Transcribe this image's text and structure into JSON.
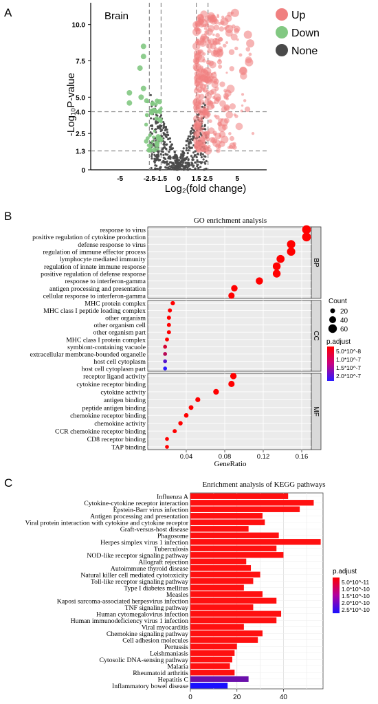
{
  "colors": {
    "up": "#f08080",
    "down": "#82c882",
    "none": "#4a4a4a",
    "dot_high": "#ff0000",
    "dot_low": "#2b1aff",
    "bar_high": "#ff1010",
    "bar_low": "#1a10ff",
    "panel_bg": "#ebebeb",
    "strip_bg": "#d9d9d9"
  },
  "panels": {
    "a": "A",
    "b": "B",
    "c": "C"
  },
  "chart_data": [
    {
      "type": "scatter",
      "title": "Brain",
      "xlabel": "Log₂(fold change)",
      "ylabel": "-Log₁₀P-value",
      "xlim": [
        -7.5,
        7.5
      ],
      "ylim": [
        0,
        11.5
      ],
      "xticks": [
        "-5",
        "-2.5",
        "-1.5",
        "0",
        "1.5",
        "2.5",
        "5"
      ],
      "xtick_values": [
        -5,
        -2.5,
        -1.5,
        0,
        1.5,
        2.5,
        5
      ],
      "yticks": [
        "0",
        "1.3",
        "2.5",
        "4.0",
        "5.0",
        "7.5",
        "10.0"
      ],
      "ytick_values": [
        0,
        1.3,
        2.5,
        4.0,
        5.0,
        7.5,
        10.0
      ],
      "vlines": [
        -2.5,
        -1.5,
        1.5,
        2.5
      ],
      "hlines": [
        1.3,
        4.0
      ],
      "legend": [
        "Up",
        "Down",
        "None"
      ],
      "legend_position": "right"
    },
    {
      "type": "scatter",
      "title": "GO enrichment analysis",
      "xlabel": "GeneRatio",
      "xlim": [
        0.0,
        0.17
      ],
      "xticks": [
        "0.04",
        "0.08",
        "0.12",
        "0.16"
      ],
      "xtick_values": [
        0.04,
        0.08,
        0.12,
        0.16
      ],
      "facets": [
        {
          "name": "BP",
          "terms": [
            {
              "term": "response to virus",
              "ratio": 0.165,
              "count": 60,
              "padj": 5e-12
            },
            {
              "term": "positive regulation of cytokine production",
              "ratio": 0.165,
              "count": 60,
              "padj": 5e-12
            },
            {
              "term": "defense response to virus",
              "ratio": 0.149,
              "count": 55,
              "padj": 5e-12
            },
            {
              "term": "regulation of immune effector process",
              "ratio": 0.149,
              "count": 55,
              "padj": 5e-12
            },
            {
              "term": "lymphocyte mediated immunity",
              "ratio": 0.138,
              "count": 52,
              "padj": 5e-12
            },
            {
              "term": "regulation of innate immune response",
              "ratio": 0.134,
              "count": 50,
              "padj": 5e-12
            },
            {
              "term": "positive regulation of defense response",
              "ratio": 0.134,
              "count": 50,
              "padj": 5e-12
            },
            {
              "term": "response to interferon-gamma",
              "ratio": 0.116,
              "count": 44,
              "padj": 5e-12
            },
            {
              "term": "antigen processing and presentation",
              "ratio": 0.09,
              "count": 36,
              "padj": 5e-12
            },
            {
              "term": "cellular response to interferon-gamma",
              "ratio": 0.087,
              "count": 34,
              "padj": 5e-12
            }
          ]
        },
        {
          "name": "CC",
          "terms": [
            {
              "term": "MHC protein complex",
              "ratio": 0.026,
              "count": 14,
              "padj": 1e-08
            },
            {
              "term": "MHC class I peptide loading complex",
              "ratio": 0.023,
              "count": 12,
              "padj": 1e-08
            },
            {
              "term": "other organism",
              "ratio": 0.022,
              "count": 11,
              "padj": 2e-08
            },
            {
              "term": "other organism cell",
              "ratio": 0.022,
              "count": 11,
              "padj": 2e-08
            },
            {
              "term": "other organism part",
              "ratio": 0.022,
              "count": 11,
              "padj": 2e-08
            },
            {
              "term": "MHC class I protein complex",
              "ratio": 0.02,
              "count": 10,
              "padj": 5e-08
            },
            {
              "term": "symbiont-containing vacuole",
              "ratio": 0.018,
              "count": 9,
              "padj": 8e-08
            },
            {
              "term": "extracellular membrane-bounded organelle",
              "ratio": 0.018,
              "count": 9,
              "padj": 1e-07
            },
            {
              "term": "host cell cytoplasm",
              "ratio": 0.018,
              "count": 9,
              "padj": 1.7e-07
            },
            {
              "term": "host cell cytoplasm part",
              "ratio": 0.018,
              "count": 9,
              "padj": 2e-07
            }
          ]
        },
        {
          "name": "MF",
          "terms": [
            {
              "term": "receptor ligand activity",
              "ratio": 0.089,
              "count": 35,
              "padj": 5e-12
            },
            {
              "term": "cytokine receptor binding",
              "ratio": 0.087,
              "count": 34,
              "padj": 5e-12
            },
            {
              "term": "cytokine activity",
              "ratio": 0.071,
              "count": 28,
              "padj": 5e-12
            },
            {
              "term": "antigen binding",
              "ratio": 0.052,
              "count": 20,
              "padj": 5e-12
            },
            {
              "term": "peptide antigen binding",
              "ratio": 0.045,
              "count": 18,
              "padj": 5e-12
            },
            {
              "term": "chemokine receptor binding",
              "ratio": 0.04,
              "count": 16,
              "padj": 5e-12
            },
            {
              "term": "chemokine activity",
              "ratio": 0.034,
              "count": 14,
              "padj": 5e-12
            },
            {
              "term": "CCR chemokine receptor binding",
              "ratio": 0.028,
              "count": 12,
              "padj": 5e-12
            },
            {
              "term": "CD8 receptor binding",
              "ratio": 0.02,
              "count": 9,
              "padj": 5e-12
            },
            {
              "term": "TAP binding",
              "ratio": 0.02,
              "count": 9,
              "padj": 5e-12
            }
          ]
        }
      ],
      "size_legend": {
        "title": "Count",
        "values": [
          20,
          40,
          60
        ]
      },
      "color_legend": {
        "title": "p.adjust",
        "labels": [
          "5.0*10^-8",
          "1.0*10^-7",
          "1.5*10^-7",
          "2.0*10^-7"
        ]
      },
      "legend_position": "right"
    },
    {
      "type": "bar",
      "orientation": "horizontal",
      "title": "Enrichment analysis of KEGG pathways",
      "xlim": [
        0,
        57
      ],
      "xticks": [
        "0",
        "20",
        "40"
      ],
      "xtick_values": [
        0,
        20,
        40
      ],
      "categories": [
        "Influenza A",
        "Cytokine-cytokine receptor interaction",
        "Epstein-Barr virus infection",
        "Antigen processing and presentation",
        "Viral protein interaction with cytokine and cytokine receptor",
        "Graft-versus-host disease",
        "Phagosome",
        "Herpes simplex virus 1 infection",
        "Tuberculosis",
        "NOD-like receptor signaling pathway",
        "Allograft rejection",
        "Autoimmune thyroid disease",
        "Natural killer cell mediated cytotoxicity",
        "Toll-like receptor signaling pathway",
        "Type I diabetes mellitus",
        "Measles",
        "Kaposi sarcoma-associated herpesvirus infection",
        "TNF signaling pathway",
        "Human cytomegalovirus infection",
        "Human immunodeficiency virus 1 infection",
        "Viral myocarditis",
        "Chemokine signaling pathway",
        "Cell adhesion molecules",
        "Pertussis",
        "Leishmaniasis",
        "Cytosolic DNA-sensing pathway",
        "Malaria",
        "Rheumatoid arthritis",
        "Hepatitis C",
        "Inflammatory bowel disease"
      ],
      "values": [
        42,
        53,
        47,
        31,
        32,
        25,
        38,
        56,
        37,
        40,
        24,
        26,
        30,
        27,
        23,
        31,
        37,
        27,
        39,
        37,
        23,
        31,
        29,
        20,
        19,
        18,
        17,
        19,
        25,
        16
      ],
      "padj": [
        5e-11,
        5e-11,
        5e-11,
        5e-11,
        5e-11,
        5e-11,
        5e-11,
        5e-11,
        5e-11,
        5e-11,
        5e-11,
        5e-11,
        5e-11,
        5e-11,
        5e-11,
        5e-11,
        5e-11,
        5e-11,
        5e-11,
        5e-11,
        5e-11,
        5e-11,
        5e-11,
        5e-11,
        5e-11,
        5e-11,
        5e-11,
        5e-11,
        1.8e-10,
        2.5e-10
      ],
      "color_legend": {
        "title": "p.adjust",
        "labels": [
          "5.0*10^-11",
          "1.0*10^-10",
          "1.5*10^-10",
          "2.0*10^-10",
          "2.5*10^-10"
        ]
      },
      "legend_position": "right"
    }
  ]
}
